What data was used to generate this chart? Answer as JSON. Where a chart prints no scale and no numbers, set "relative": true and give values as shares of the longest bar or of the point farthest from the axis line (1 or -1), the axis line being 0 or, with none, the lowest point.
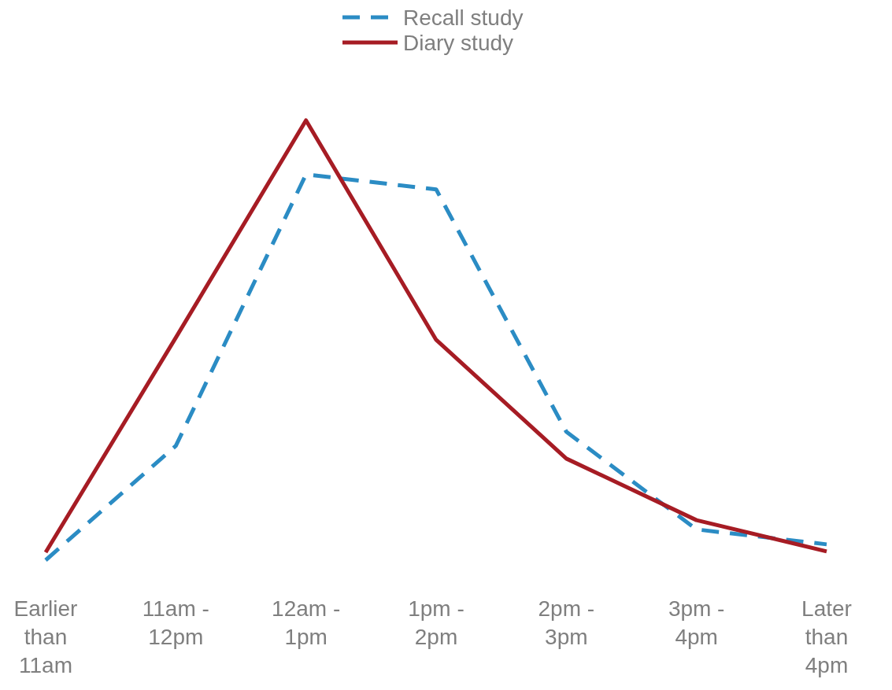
{
  "chart_data": {
    "type": "line",
    "relative": true,
    "categories": [
      "Earlier than 11am",
      "11am - 12pm",
      "12am - 1pm",
      "1pm - 2pm",
      "2pm - 3pm",
      "3pm - 4pm",
      "Later than 4pm"
    ],
    "series": [
      {
        "name": "Recall study",
        "color": "#2b8cc4",
        "line_style": "dashed",
        "values": [
          0,
          0.26,
          0.877,
          0.843,
          0.292,
          0.07,
          0.036
        ]
      },
      {
        "name": "Diary study",
        "color": "#a61c24",
        "line_style": "solid",
        "values": [
          0.018,
          0.506,
          1,
          0.501,
          0.231,
          0.091,
          0.02
        ]
      }
    ],
    "legend": "top",
    "marker": "none"
  }
}
